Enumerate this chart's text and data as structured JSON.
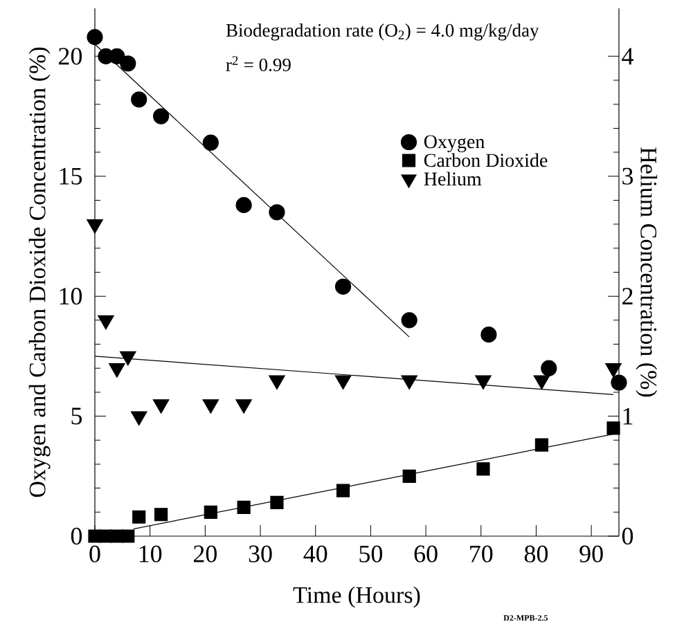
{
  "chart_data": {
    "type": "scatter",
    "xlabel": "Time (Hours)",
    "ylabel": "Oxygen and Carbon Dioxide Concentration (%)",
    "y2label": "Helium Concentration (%)",
    "xlim": [
      0,
      95
    ],
    "xticks": [
      0,
      10,
      20,
      30,
      40,
      50,
      60,
      70,
      80,
      90
    ],
    "ylim": [
      0,
      22
    ],
    "yticks": [
      0,
      5,
      10,
      15,
      20
    ],
    "y2lim": [
      0,
      4.4
    ],
    "y2ticks": [
      0,
      1,
      2,
      3,
      4
    ],
    "legend": "top right",
    "grid": false,
    "annotations": [
      "Biodegradation rate (O$_{2}$) = 4.0 mg/kg/day",
      "r$^{2}$ = 0.99",
      "D2-MPB-2.5"
    ],
    "series": [
      {
        "name": "Oxygen",
        "marker": "circle",
        "color": "#000000",
        "x": [
          0,
          2,
          4,
          6,
          8,
          12,
          21,
          27,
          33,
          45,
          57,
          71.4,
          82.3,
          95
        ],
        "values": [
          20.8,
          20.0,
          20.0,
          19.7,
          18.2,
          17.5,
          16.4,
          13.8,
          13.5,
          10.4,
          9.0,
          8.4,
          7.0,
          6.4
        ]
      },
      {
        "name": "Carbon Dioxide",
        "marker": "square",
        "color": "#000000",
        "x": [
          0,
          2,
          4,
          6,
          8,
          12,
          21,
          27,
          33,
          45,
          57,
          70.4,
          81,
          94
        ],
        "values": [
          0,
          0,
          0,
          0,
          0.8,
          0.9,
          1.0,
          1.2,
          1.4,
          1.9,
          2.5,
          2.8,
          3.8,
          4.5
        ]
      },
      {
        "name": "Helium",
        "marker": "triangle",
        "axis": "y2",
        "color": "#000000",
        "x": [
          0,
          2,
          4,
          6,
          8,
          12,
          21,
          27,
          33,
          45,
          57,
          70.4,
          81,
          94
        ],
        "values": [
          2.6,
          1.8,
          1.4,
          1.5,
          1.0,
          1.1,
          1.1,
          1.1,
          1.3,
          1.3,
          1.3,
          1.3,
          1.3,
          1.4
        ]
      },
      {
        "type": "line",
        "marker": "none",
        "color": "#000000",
        "x": [
          0,
          57
        ],
        "values": [
          20.5,
          8.3
        ]
      },
      {
        "type": "line",
        "marker": "none",
        "color": "#000000",
        "x": [
          7,
          95
        ],
        "values": [
          0.3,
          4.3
        ]
      },
      {
        "type": "line",
        "marker": "none",
        "axis": "y2",
        "color": "#000000",
        "x": [
          0,
          94
        ],
        "values": [
          1.5,
          1.18
        ]
      }
    ]
  }
}
